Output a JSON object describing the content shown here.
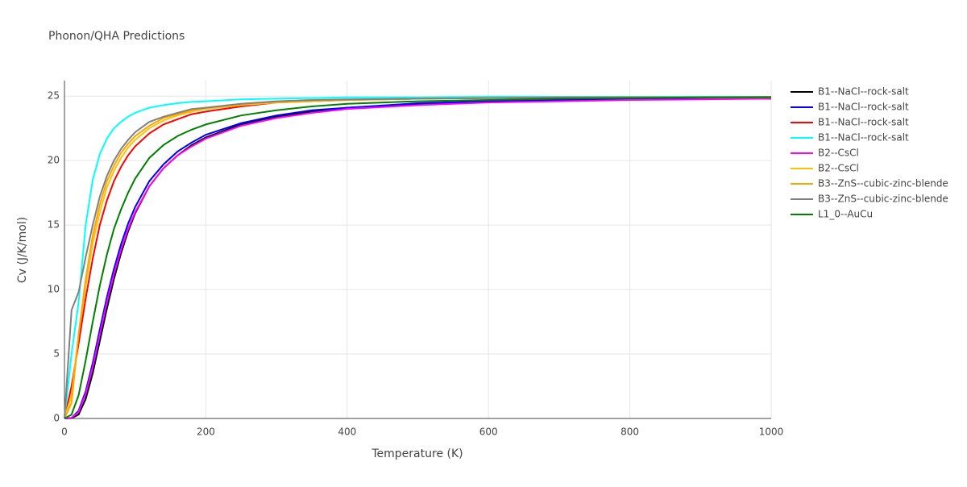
{
  "chart_data": {
    "type": "line",
    "title": "Phonon/QHA Predictions",
    "x_label": "Temperature (K)",
    "y_label": "Cv (J/K/mol)",
    "x": [
      0,
      10,
      20,
      30,
      40,
      50,
      60,
      70,
      80,
      90,
      100,
      120,
      140,
      160,
      180,
      200,
      250,
      300,
      350,
      400,
      500,
      600,
      700,
      800,
      900,
      1000
    ],
    "xlim": [
      0,
      1000
    ],
    "xticks": [
      0,
      200,
      400,
      600,
      800,
      1000
    ],
    "ylim": [
      0,
      26.2
    ],
    "yticks": [
      0,
      5,
      10,
      15,
      20,
      25
    ],
    "grid": true,
    "series": [
      {
        "name": "B1--NaCl--rock-salt",
        "color": "#000000",
        "values": [
          0,
          0.02,
          0.3,
          1.5,
          3.5,
          6,
          8.5,
          10.8,
          12.8,
          14.5,
          15.9,
          18,
          19.4,
          20.4,
          21.2,
          21.8,
          22.8,
          23.4,
          23.8,
          24.1,
          24.4,
          24.6,
          24.7,
          24.75,
          24.8,
          24.8
        ]
      },
      {
        "name": "B1--NaCl--rock-salt",
        "color": "#0000ff",
        "values": [
          0,
          0.05,
          0.6,
          2.1,
          4.3,
          6.9,
          9.4,
          11.6,
          13.5,
          15.1,
          16.4,
          18.4,
          19.7,
          20.7,
          21.4,
          22,
          22.9,
          23.5,
          23.9,
          24.1,
          24.45,
          24.6,
          24.7,
          24.75,
          24.8,
          24.8
        ]
      },
      {
        "name": "B1--NaCl--rock-salt",
        "color": "#ff0000",
        "values": [
          0,
          2.5,
          5.8,
          9.3,
          12.4,
          15,
          16.9,
          18.4,
          19.5,
          20.4,
          21.1,
          22.1,
          22.8,
          23.2,
          23.6,
          23.8,
          24.2,
          24.5,
          24.6,
          24.7,
          24.8,
          24.85,
          24.85,
          24.9,
          24.9,
          24.9
        ]
      },
      {
        "name": "B1--NaCl--rock-salt",
        "color": "#00ffff",
        "values": [
          0,
          5,
          9,
          15,
          18.5,
          20.5,
          21.7,
          22.5,
          23,
          23.4,
          23.7,
          24.1,
          24.3,
          24.45,
          24.55,
          24.6,
          24.75,
          24.8,
          24.85,
          24.9,
          24.9,
          24.95,
          24.95,
          24.95,
          24.95,
          24.95
        ]
      },
      {
        "name": "B2--CsCl",
        "color": "#ff00ff",
        "values": [
          0,
          0.05,
          0.5,
          1.9,
          4,
          6.5,
          9,
          11.2,
          13.1,
          14.7,
          16,
          18,
          19.4,
          20.4,
          21.1,
          21.7,
          22.7,
          23.3,
          23.7,
          24,
          24.3,
          24.5,
          24.6,
          24.7,
          24.75,
          24.8
        ]
      },
      {
        "name": "B2--CsCl",
        "color": "#ffc107",
        "values": [
          0,
          1.8,
          6.5,
          10.3,
          13.6,
          16,
          17.9,
          19.2,
          20.2,
          21,
          21.6,
          22.5,
          23.1,
          23.5,
          23.8,
          24,
          24.3,
          24.5,
          24.6,
          24.7,
          24.8,
          24.85,
          24.9,
          24.9,
          24.9,
          24.9
        ]
      },
      {
        "name": "B3--ZnS--cubic-zinc-blende",
        "color": "#ffa500",
        "values": [
          0,
          1.2,
          6.5,
          10.8,
          14.2,
          16.6,
          18.4,
          19.6,
          20.6,
          21.3,
          21.9,
          22.7,
          23.3,
          23.6,
          23.9,
          24.1,
          24.4,
          24.55,
          24.65,
          24.7,
          24.8,
          24.85,
          24.9,
          24.9,
          24.9,
          24.9
        ]
      },
      {
        "name": "B3--ZnS--cubic-zinc-blende",
        "color": "#808080",
        "values": [
          0,
          8.4,
          9.8,
          12.5,
          15,
          17.2,
          18.8,
          20,
          20.9,
          21.6,
          22.2,
          23,
          23.4,
          23.7,
          24,
          24.1,
          24.4,
          24.6,
          24.7,
          24.75,
          24.8,
          24.85,
          24.9,
          24.9,
          24.9,
          24.95
        ]
      },
      {
        "name": "L1_0--AuCu",
        "color": "#008000",
        "values": [
          0,
          0.3,
          1.8,
          4.5,
          7.5,
          10.3,
          12.7,
          14.7,
          16.2,
          17.5,
          18.6,
          20.2,
          21.2,
          21.9,
          22.4,
          22.8,
          23.5,
          23.9,
          24.2,
          24.4,
          24.6,
          24.7,
          24.8,
          24.85,
          24.9,
          24.9
        ]
      }
    ]
  }
}
